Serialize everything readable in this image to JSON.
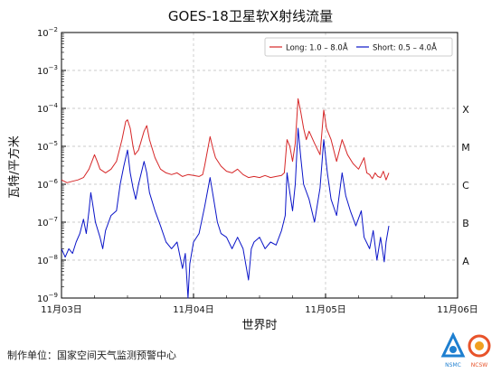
{
  "chart_data": {
    "type": "line",
    "title": "GOES-18卫星软X射线流量",
    "xlabel": "世界时",
    "ylabel": "瓦特/平方米",
    "y_scale": "log",
    "ylim": [
      1e-09,
      0.01
    ],
    "y_ticks": [
      {
        "value": 0.01,
        "base": "10",
        "exp": "−2"
      },
      {
        "value": 0.001,
        "base": "10",
        "exp": "−3"
      },
      {
        "value": 0.0001,
        "base": "10",
        "exp": "−4"
      },
      {
        "value": 1e-05,
        "base": "10",
        "exp": "−5"
      },
      {
        "value": 1e-06,
        "base": "10",
        "exp": "−6"
      },
      {
        "value": 1e-07,
        "base": "10",
        "exp": "−7"
      },
      {
        "value": 1e-08,
        "base": "10",
        "exp": "−8"
      },
      {
        "value": 1e-09,
        "base": "10",
        "exp": "−9"
      }
    ],
    "xlim": [
      "2025-11-03T00:00",
      "2025-11-06T00:00"
    ],
    "x_ticks": [
      {
        "value": "2025-11-03T00:00",
        "label": "11月03日"
      },
      {
        "value": "2025-11-04T00:00",
        "label": "11月04日"
      },
      {
        "value": "2025-11-05T00:00",
        "label": "11月05日"
      },
      {
        "value": "2025-11-06T00:00",
        "label": "11月06日"
      }
    ],
    "grid": true,
    "legend_position": "top-right",
    "flare_classes": [
      {
        "label": "X",
        "value": 0.0001
      },
      {
        "label": "M",
        "value": 1e-05
      },
      {
        "label": "C",
        "value": 1e-06
      },
      {
        "label": "B",
        "value": 1e-07
      },
      {
        "label": "A",
        "value": 1e-08
      }
    ],
    "series": [
      {
        "name": "Long: 1.0 – 8.0Å",
        "color": "#d62728",
        "points": [
          [
            "2025-11-03T00:00",
            1.3e-06
          ],
          [
            "2025-11-03T01:00",
            1.1e-06
          ],
          [
            "2025-11-03T02:00",
            1.2e-06
          ],
          [
            "2025-11-03T03:00",
            1.3e-06
          ],
          [
            "2025-11-03T04:00",
            1.5e-06
          ],
          [
            "2025-11-03T05:00",
            2.5e-06
          ],
          [
            "2025-11-03T06:00",
            6e-06
          ],
          [
            "2025-11-03T06:30",
            4e-06
          ],
          [
            "2025-11-03T07:00",
            2.5e-06
          ],
          [
            "2025-11-03T08:00",
            2e-06
          ],
          [
            "2025-11-03T09:00",
            2.5e-06
          ],
          [
            "2025-11-03T10:00",
            4e-06
          ],
          [
            "2025-11-03T11:00",
            1.5e-05
          ],
          [
            "2025-11-03T11:40",
            4.5e-05
          ],
          [
            "2025-11-03T12:00",
            5e-05
          ],
          [
            "2025-11-03T12:30",
            3e-05
          ],
          [
            "2025-11-03T13:00",
            1e-05
          ],
          [
            "2025-11-03T13:20",
            6e-06
          ],
          [
            "2025-11-03T14:00",
            8e-06
          ],
          [
            "2025-11-03T15:00",
            2.5e-05
          ],
          [
            "2025-11-03T15:30",
            3.5e-05
          ],
          [
            "2025-11-03T16:00",
            1.5e-05
          ],
          [
            "2025-11-03T17:00",
            5e-06
          ],
          [
            "2025-11-03T18:00",
            2.5e-06
          ],
          [
            "2025-11-03T19:00",
            2e-06
          ],
          [
            "2025-11-03T20:00",
            1.8e-06
          ],
          [
            "2025-11-03T21:00",
            2e-06
          ],
          [
            "2025-11-03T22:00",
            1.6e-06
          ],
          [
            "2025-11-03T23:00",
            1.8e-06
          ],
          [
            "2025-11-04T00:00",
            1.7e-06
          ],
          [
            "2025-11-04T01:00",
            1.6e-06
          ],
          [
            "2025-11-04T01:40",
            1.8e-06
          ],
          [
            "2025-11-04T02:00",
            3e-06
          ],
          [
            "2025-11-04T03:00",
            1.8e-05
          ],
          [
            "2025-11-04T03:30",
            9e-06
          ],
          [
            "2025-11-04T04:00",
            5e-06
          ],
          [
            "2025-11-04T05:00",
            3e-06
          ],
          [
            "2025-11-04T06:00",
            2.2e-06
          ],
          [
            "2025-11-04T07:00",
            2e-06
          ],
          [
            "2025-11-04T08:00",
            2.5e-06
          ],
          [
            "2025-11-04T09:00",
            1.8e-06
          ],
          [
            "2025-11-04T10:00",
            1.5e-06
          ],
          [
            "2025-11-04T11:00",
            1.6e-06
          ],
          [
            "2025-11-04T12:00",
            1.5e-06
          ],
          [
            "2025-11-04T13:00",
            1.7e-06
          ],
          [
            "2025-11-04T14:00",
            1.5e-06
          ],
          [
            "2025-11-04T15:00",
            1.6e-06
          ],
          [
            "2025-11-04T16:00",
            1.7e-06
          ],
          [
            "2025-11-04T16:30",
            2e-06
          ],
          [
            "2025-11-04T17:00",
            1.5e-05
          ],
          [
            "2025-11-04T17:30",
            1e-05
          ],
          [
            "2025-11-04T18:00",
            4e-06
          ],
          [
            "2025-11-04T18:30",
            1.2e-05
          ],
          [
            "2025-11-04T19:00",
            0.00018
          ],
          [
            "2025-11-04T19:30",
            8e-05
          ],
          [
            "2025-11-04T20:00",
            3e-05
          ],
          [
            "2025-11-04T20:30",
            1.5e-05
          ],
          [
            "2025-11-04T21:00",
            2.5e-05
          ],
          [
            "2025-11-04T22:00",
            1.2e-05
          ],
          [
            "2025-11-04T23:00",
            6e-06
          ],
          [
            "2025-11-04T23:40",
            9e-05
          ],
          [
            "2025-11-05T00:10",
            3e-05
          ],
          [
            "2025-11-05T01:00",
            1.5e-05
          ],
          [
            "2025-11-05T02:00",
            4e-06
          ],
          [
            "2025-11-05T03:00",
            1.5e-05
          ],
          [
            "2025-11-05T04:00",
            6e-06
          ],
          [
            "2025-11-05T05:00",
            3.5e-06
          ],
          [
            "2025-11-05T06:00",
            2.5e-06
          ],
          [
            "2025-11-05T07:00",
            5e-06
          ],
          [
            "2025-11-05T07:30",
            2e-06
          ],
          [
            "2025-11-05T08:00",
            1.8e-06
          ],
          [
            "2025-11-05T08:30",
            1.4e-06
          ],
          [
            "2025-11-05T09:00",
            2e-06
          ],
          [
            "2025-11-05T09:30",
            1.6e-06
          ],
          [
            "2025-11-05T10:00",
            1.5e-06
          ],
          [
            "2025-11-05T10:30",
            2.2e-06
          ],
          [
            "2025-11-05T11:00",
            1.3e-06
          ],
          [
            "2025-11-05T11:30",
            2e-06
          ]
        ]
      },
      {
        "name": "Short: 0.5 – 4.0Å",
        "color": "#0a14c8",
        "points": [
          [
            "2025-11-03T00:00",
            2e-08
          ],
          [
            "2025-11-03T00:40",
            1.2e-08
          ],
          [
            "2025-11-03T01:20",
            2e-08
          ],
          [
            "2025-11-03T02:00",
            1.5e-08
          ],
          [
            "2025-11-03T02:40",
            3e-08
          ],
          [
            "2025-11-03T03:20",
            5e-08
          ],
          [
            "2025-11-03T04:00",
            1.2e-07
          ],
          [
            "2025-11-03T04:30",
            5e-08
          ],
          [
            "2025-11-03T05:00",
            2e-07
          ],
          [
            "2025-11-03T05:20",
            6e-07
          ],
          [
            "2025-11-03T05:40",
            3e-07
          ],
          [
            "2025-11-03T06:10",
            1e-07
          ],
          [
            "2025-11-03T07:00",
            4e-08
          ],
          [
            "2025-11-03T07:30",
            2e-08
          ],
          [
            "2025-11-03T08:00",
            6e-08
          ],
          [
            "2025-11-03T09:00",
            1.5e-07
          ],
          [
            "2025-11-03T10:00",
            2e-07
          ],
          [
            "2025-11-03T10:40",
            1e-06
          ],
          [
            "2025-11-03T11:20",
            3e-06
          ],
          [
            "2025-11-03T12:00",
            8e-06
          ],
          [
            "2025-11-03T12:30",
            2e-06
          ],
          [
            "2025-11-03T13:00",
            8e-07
          ],
          [
            "2025-11-03T13:30",
            4e-07
          ],
          [
            "2025-11-03T14:00",
            1e-06
          ],
          [
            "2025-11-03T15:00",
            4e-06
          ],
          [
            "2025-11-03T15:30",
            2e-06
          ],
          [
            "2025-11-03T16:00",
            6e-07
          ],
          [
            "2025-11-03T17:00",
            2e-07
          ],
          [
            "2025-11-03T18:00",
            8e-08
          ],
          [
            "2025-11-03T19:00",
            3e-08
          ],
          [
            "2025-11-03T20:00",
            2e-08
          ],
          [
            "2025-11-03T21:00",
            3e-08
          ],
          [
            "2025-11-03T22:00",
            6e-09
          ],
          [
            "2025-11-03T22:30",
            1.5e-08
          ],
          [
            "2025-11-03T23:00",
            1e-09
          ],
          [
            "2025-11-03T23:20",
            8e-09
          ],
          [
            "2025-11-04T00:00",
            3e-08
          ],
          [
            "2025-11-04T01:00",
            5e-08
          ],
          [
            "2025-11-04T02:00",
            2.5e-07
          ],
          [
            "2025-11-04T03:00",
            1.5e-06
          ],
          [
            "2025-11-04T03:40",
            4e-07
          ],
          [
            "2025-11-04T04:20",
            1e-07
          ],
          [
            "2025-11-04T05:00",
            5e-08
          ],
          [
            "2025-11-04T06:00",
            4e-08
          ],
          [
            "2025-11-04T07:00",
            2e-08
          ],
          [
            "2025-11-04T08:00",
            4e-08
          ],
          [
            "2025-11-04T09:00",
            2e-08
          ],
          [
            "2025-11-04T10:00",
            3e-09
          ],
          [
            "2025-11-04T10:30",
            2e-08
          ],
          [
            "2025-11-04T11:00",
            3e-08
          ],
          [
            "2025-11-04T12:00",
            4e-08
          ],
          [
            "2025-11-04T13:00",
            2e-08
          ],
          [
            "2025-11-04T14:00",
            3e-08
          ],
          [
            "2025-11-04T15:00",
            2.5e-08
          ],
          [
            "2025-11-04T16:00",
            6e-08
          ],
          [
            "2025-11-04T16:40",
            1.5e-07
          ],
          [
            "2025-11-04T17:00",
            2e-06
          ],
          [
            "2025-11-04T17:30",
            6e-07
          ],
          [
            "2025-11-04T18:00",
            2e-07
          ],
          [
            "2025-11-04T18:30",
            1e-06
          ],
          [
            "2025-11-04T19:00",
            3e-05
          ],
          [
            "2025-11-04T19:30",
            5e-06
          ],
          [
            "2025-11-04T20:00",
            1e-06
          ],
          [
            "2025-11-04T21:00",
            4e-07
          ],
          [
            "2025-11-04T22:00",
            1e-07
          ],
          [
            "2025-11-04T23:00",
            8e-07
          ],
          [
            "2025-11-04T23:40",
            1.5e-05
          ],
          [
            "2025-11-05T00:20",
            2e-06
          ],
          [
            "2025-11-05T01:00",
            4e-07
          ],
          [
            "2025-11-05T02:00",
            1.5e-07
          ],
          [
            "2025-11-05T03:00",
            2e-06
          ],
          [
            "2025-11-05T03:40",
            5e-07
          ],
          [
            "2025-11-05T04:30",
            2e-07
          ],
          [
            "2025-11-05T05:30",
            8e-08
          ],
          [
            "2025-11-05T06:30",
            2e-07
          ],
          [
            "2025-11-05T07:00",
            4e-08
          ],
          [
            "2025-11-05T08:00",
            2e-08
          ],
          [
            "2025-11-05T08:40",
            6e-08
          ],
          [
            "2025-11-05T09:20",
            1e-08
          ],
          [
            "2025-11-05T10:00",
            4e-08
          ],
          [
            "2025-11-05T10:40",
            9e-09
          ],
          [
            "2025-11-05T11:00",
            3e-08
          ],
          [
            "2025-11-05T11:30",
            8e-08
          ]
        ]
      }
    ]
  },
  "footer": {
    "credit": "制作单位：国家空间天气监测预警中心",
    "logos": [
      {
        "name": "NSMC",
        "color": "#1e7fd0",
        "icon": "nsmc-logo"
      },
      {
        "name": "NCSW",
        "color": "#e8532a",
        "icon": "ncsw-logo"
      }
    ]
  }
}
